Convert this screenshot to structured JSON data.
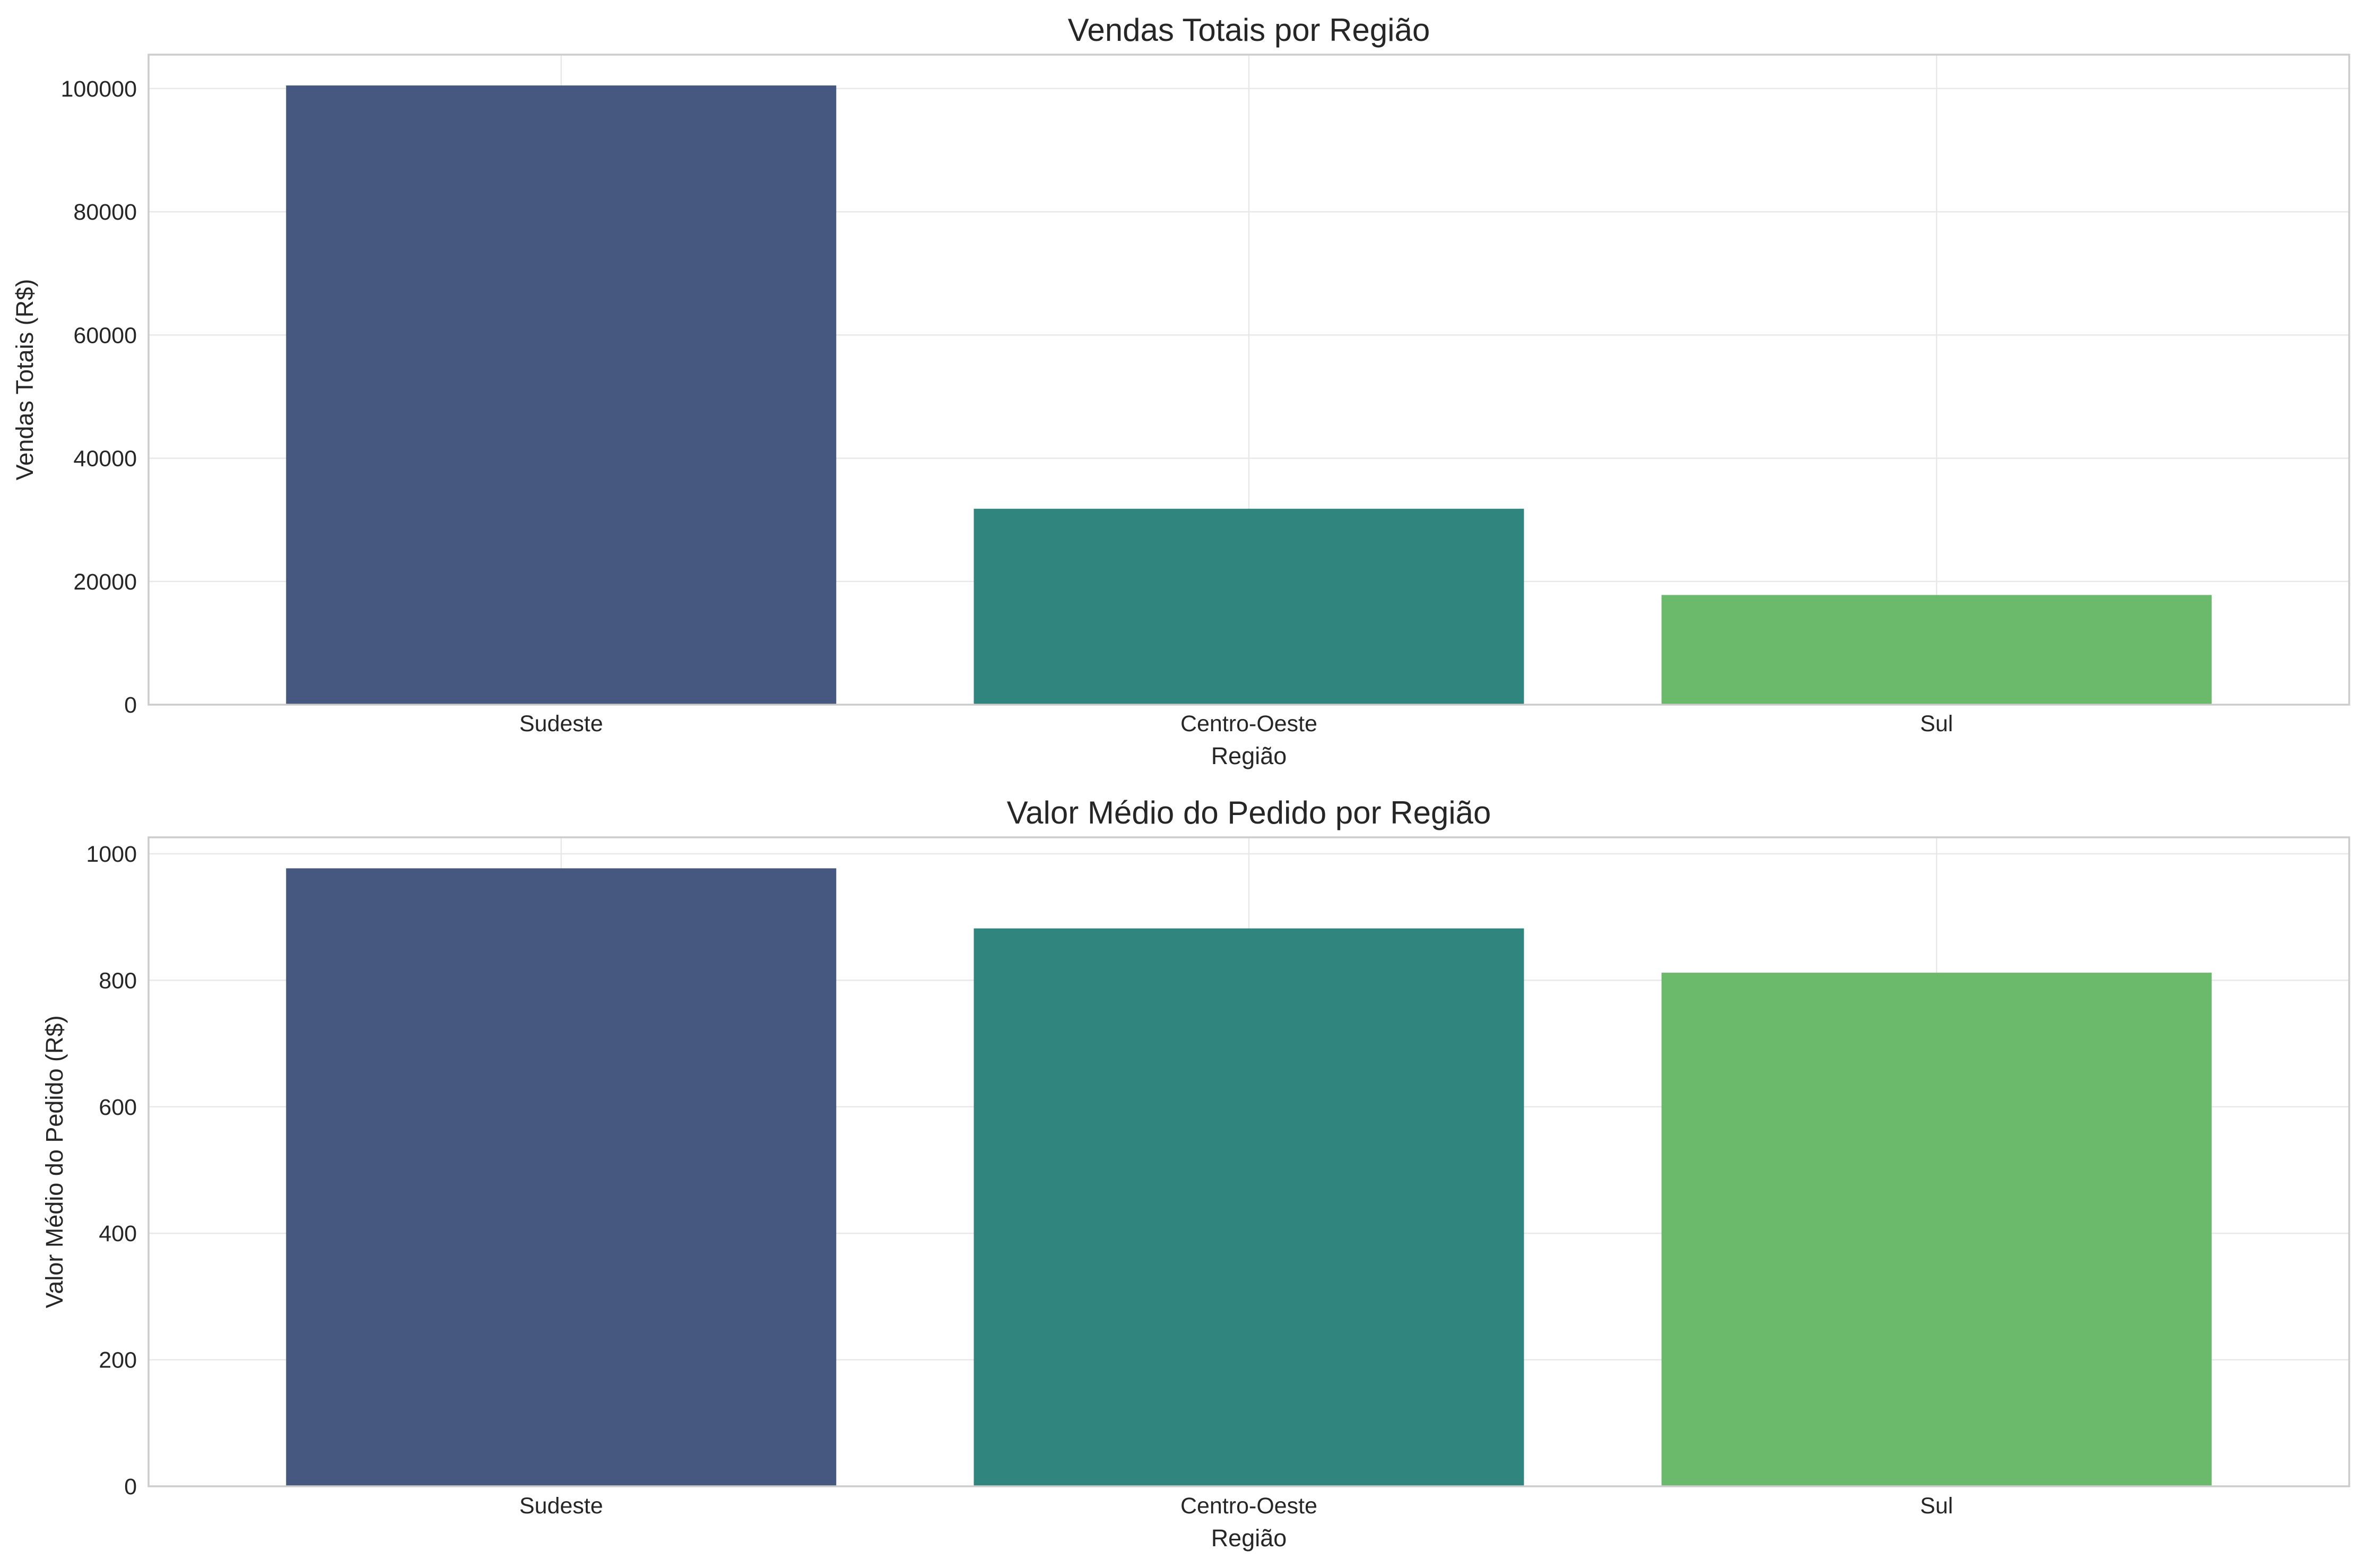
{
  "chart_data": [
    {
      "type": "bar",
      "title": "Vendas Totais por Região",
      "xlabel": "Região",
      "ylabel": "Vendas Totais (R$)",
      "categories": [
        "Sudeste",
        "Centro-Oeste",
        "Sul"
      ],
      "values": [
        100500,
        31800,
        17800
      ],
      "colors": [
        "#46587f",
        "#30857f",
        "#6bba6c"
      ],
      "ylim": [
        0,
        105500
      ],
      "yticks": [
        0,
        20000,
        40000,
        60000,
        80000,
        100000
      ],
      "ytick_labels": [
        "0",
        "20000",
        "40000",
        "60000",
        "80000",
        "100000"
      ],
      "grid": true,
      "legend": "none"
    },
    {
      "type": "bar",
      "title": "Valor Médio do Pedido por Região",
      "xlabel": "Região",
      "ylabel": "Valor Médio do Pedido (R$)",
      "categories": [
        "Sudeste",
        "Centro-Oeste",
        "Sul"
      ],
      "values": [
        977,
        882,
        812
      ],
      "colors": [
        "#46587f",
        "#30857f",
        "#6bba6c"
      ],
      "ylim": [
        0,
        1026
      ],
      "yticks": [
        0,
        200,
        400,
        600,
        800,
        1000
      ],
      "ytick_labels": [
        "0",
        "200",
        "400",
        "600",
        "800",
        "1000"
      ],
      "grid": true,
      "legend": "none"
    }
  ]
}
